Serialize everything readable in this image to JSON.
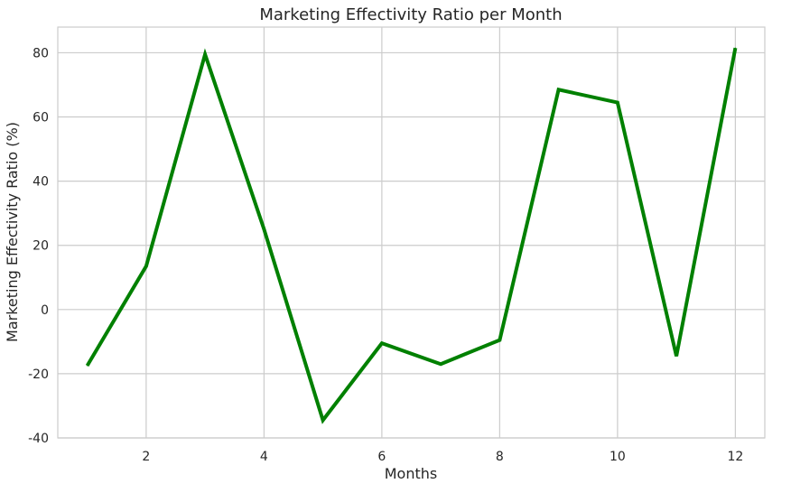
{
  "chart_data": {
    "type": "line",
    "title": "Marketing Effectivity Ratio per Month",
    "xlabel": "Months",
    "ylabel": "Marketing Effectivity Ratio (%)",
    "xlim": [
      0.5,
      12.5
    ],
    "ylim": [
      -40,
      88
    ],
    "xticks": [
      2,
      4,
      6,
      8,
      10,
      12
    ],
    "yticks": [
      -40,
      -20,
      0,
      20,
      40,
      60,
      80
    ],
    "grid": true,
    "series": [
      {
        "color": "#008000",
        "x": [
          1,
          2,
          3,
          4,
          5,
          6,
          7,
          8,
          9,
          10,
          11,
          12
        ],
        "values": [
          -17.5,
          13.5,
          79.5,
          25,
          -34.5,
          -10.5,
          -17,
          -9.5,
          68.5,
          64.5,
          -14.5,
          81.5
        ]
      }
    ]
  }
}
